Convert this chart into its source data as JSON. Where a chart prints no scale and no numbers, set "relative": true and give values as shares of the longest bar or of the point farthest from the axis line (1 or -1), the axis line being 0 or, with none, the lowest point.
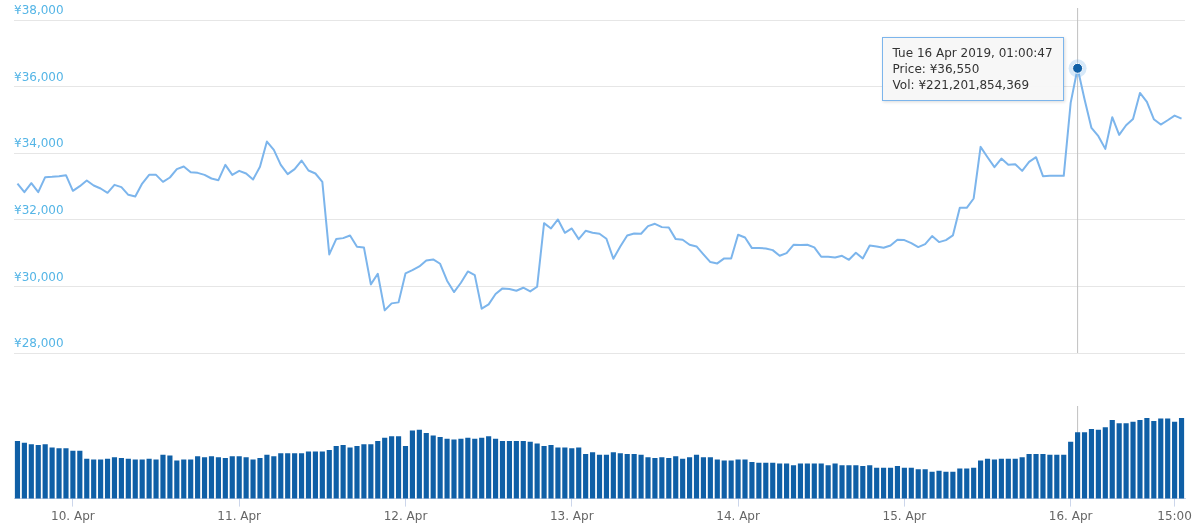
{
  "chart_data": [
    {
      "type": "line",
      "tick_labels": "y",
      "grid": "y",
      "marker": "none",
      "line_style": "solid",
      "xlim": [
        "2019-04-09T15:30",
        "2019-04-16T16:30"
      ],
      "ylim": [
        28000,
        38000
      ],
      "yticks": [
        {
          "value": 28000,
          "label": "¥28,000"
        },
        {
          "value": 30000,
          "label": "¥30,000"
        },
        {
          "value": 32000,
          "label": "¥32,000"
        },
        {
          "value": 34000,
          "label": "¥34,000"
        },
        {
          "value": 36000,
          "label": "¥36,000"
        },
        {
          "value": 38000,
          "label": "¥38,000"
        }
      ],
      "x": [
        "2019-04-09T16:00",
        "2019-04-09T17:00",
        "2019-04-09T18:00",
        "2019-04-09T19:00",
        "2019-04-09T20:00",
        "2019-04-09T21:00",
        "2019-04-09T22:00",
        "2019-04-09T23:00",
        "2019-04-10T00:00",
        "2019-04-10T01:00",
        "2019-04-10T02:00",
        "2019-04-10T03:00",
        "2019-04-10T04:00",
        "2019-04-10T05:00",
        "2019-04-10T06:00",
        "2019-04-10T07:00",
        "2019-04-10T08:00",
        "2019-04-10T09:00",
        "2019-04-10T10:00",
        "2019-04-10T11:00",
        "2019-04-10T12:00",
        "2019-04-10T13:00",
        "2019-04-10T14:00",
        "2019-04-10T15:00",
        "2019-04-10T16:00",
        "2019-04-10T17:00",
        "2019-04-10T18:00",
        "2019-04-10T19:00",
        "2019-04-10T20:00",
        "2019-04-10T21:00",
        "2019-04-10T22:00",
        "2019-04-10T23:00",
        "2019-04-11T00:00",
        "2019-04-11T01:00",
        "2019-04-11T02:00",
        "2019-04-11T03:00",
        "2019-04-11T04:00",
        "2019-04-11T05:00",
        "2019-04-11T06:00",
        "2019-04-11T07:00",
        "2019-04-11T08:00",
        "2019-04-11T09:00",
        "2019-04-11T10:00",
        "2019-04-11T11:00",
        "2019-04-11T12:00",
        "2019-04-11T13:00",
        "2019-04-11T14:00",
        "2019-04-11T15:00",
        "2019-04-11T16:00",
        "2019-04-11T17:00",
        "2019-04-11T18:00",
        "2019-04-11T19:00",
        "2019-04-11T20:00",
        "2019-04-11T21:00",
        "2019-04-11T22:00",
        "2019-04-11T23:00",
        "2019-04-12T00:00",
        "2019-04-12T01:00",
        "2019-04-12T02:00",
        "2019-04-12T03:00",
        "2019-04-12T04:00",
        "2019-04-12T05:00",
        "2019-04-12T06:00",
        "2019-04-12T07:00",
        "2019-04-12T08:00",
        "2019-04-12T09:00",
        "2019-04-12T10:00",
        "2019-04-12T11:00",
        "2019-04-12T12:00",
        "2019-04-12T13:00",
        "2019-04-12T14:00",
        "2019-04-12T15:00",
        "2019-04-12T16:00",
        "2019-04-12T17:00",
        "2019-04-12T18:00",
        "2019-04-12T19:00",
        "2019-04-12T20:00",
        "2019-04-12T21:00",
        "2019-04-12T22:00",
        "2019-04-12T23:00",
        "2019-04-13T00:00",
        "2019-04-13T01:00",
        "2019-04-13T02:00",
        "2019-04-13T03:00",
        "2019-04-13T04:00",
        "2019-04-13T05:00",
        "2019-04-13T06:00",
        "2019-04-13T07:00",
        "2019-04-13T08:00",
        "2019-04-13T09:00",
        "2019-04-13T10:00",
        "2019-04-13T11:00",
        "2019-04-13T12:00",
        "2019-04-13T13:00",
        "2019-04-13T14:00",
        "2019-04-13T15:00",
        "2019-04-13T16:00",
        "2019-04-13T17:00",
        "2019-04-13T18:00",
        "2019-04-13T19:00",
        "2019-04-13T20:00",
        "2019-04-13T21:00",
        "2019-04-13T22:00",
        "2019-04-13T23:00",
        "2019-04-14T00:00",
        "2019-04-14T01:00",
        "2019-04-14T02:00",
        "2019-04-14T03:00",
        "2019-04-14T04:00",
        "2019-04-14T05:00",
        "2019-04-14T06:00",
        "2019-04-14T07:00",
        "2019-04-14T08:00",
        "2019-04-14T09:00",
        "2019-04-14T10:00",
        "2019-04-14T11:00",
        "2019-04-14T12:00",
        "2019-04-14T13:00",
        "2019-04-14T14:00",
        "2019-04-14T15:00",
        "2019-04-14T16:00",
        "2019-04-14T17:00",
        "2019-04-14T18:00",
        "2019-04-14T19:00",
        "2019-04-14T20:00",
        "2019-04-14T21:00",
        "2019-04-14T22:00",
        "2019-04-14T23:00",
        "2019-04-15T00:00",
        "2019-04-15T01:00",
        "2019-04-15T02:00",
        "2019-04-15T03:00",
        "2019-04-15T04:00",
        "2019-04-15T05:00",
        "2019-04-15T06:00",
        "2019-04-15T07:00",
        "2019-04-15T08:00",
        "2019-04-15T09:00",
        "2019-04-15T10:00",
        "2019-04-15T11:00",
        "2019-04-15T12:00",
        "2019-04-15T13:00",
        "2019-04-15T14:00",
        "2019-04-15T15:00",
        "2019-04-15T16:00",
        "2019-04-15T17:00",
        "2019-04-15T18:00",
        "2019-04-15T19:00",
        "2019-04-15T20:00",
        "2019-04-15T21:00",
        "2019-04-15T22:00",
        "2019-04-15T23:00",
        "2019-04-16T00:00",
        "2019-04-16T01:00",
        "2019-04-16T02:00",
        "2019-04-16T03:00",
        "2019-04-16T04:00",
        "2019-04-16T05:00",
        "2019-04-16T06:00",
        "2019-04-16T07:00",
        "2019-04-16T08:00",
        "2019-04-16T09:00",
        "2019-04-16T10:00",
        "2019-04-16T11:00",
        "2019-04-16T12:00",
        "2019-04-16T13:00",
        "2019-04-16T14:00",
        "2019-04-16T15:00",
        "2019-04-16T16:00"
      ],
      "series": [
        {
          "color": "#7cb5ec",
          "values": [
            33090,
            32830,
            33100,
            32830,
            33280,
            33290,
            33310,
            33340,
            32870,
            33010,
            33180,
            33030,
            32940,
            32810,
            33050,
            32980,
            32750,
            32700,
            33090,
            33350,
            33350,
            33140,
            33270,
            33520,
            33600,
            33430,
            33410,
            33350,
            33240,
            33190,
            33650,
            33350,
            33470,
            33390,
            33210,
            33590,
            34350,
            34100,
            33650,
            33370,
            33520,
            33780,
            33480,
            33390,
            33140,
            30960,
            31420,
            31450,
            31530,
            31190,
            31170,
            30060,
            30380,
            29280,
            29490,
            29520,
            30390,
            30490,
            30600,
            30780,
            30810,
            30680,
            30170,
            29830,
            30110,
            30450,
            30340,
            29330,
            29460,
            29770,
            29940,
            29920,
            29870,
            29960,
            29850,
            29990,
            31900,
            31740,
            32010,
            31610,
            31740,
            31420,
            31670,
            31610,
            31580,
            31430,
            30830,
            31200,
            31530,
            31590,
            31580,
            31810,
            31880,
            31780,
            31770,
            31420,
            31400,
            31250,
            31200,
            30960,
            30730,
            30690,
            30840,
            30840,
            31550,
            31470,
            31150,
            31150,
            31140,
            31090,
            30920,
            31000,
            31250,
            31240,
            31250,
            31170,
            30890,
            30890,
            30870,
            30920,
            30800,
            31010,
            30840,
            31230,
            31200,
            31160,
            31230,
            31400,
            31390,
            31300,
            31180,
            31270,
            31510,
            31330,
            31390,
            31530,
            32360,
            32360,
            32640,
            34190,
            33880,
            33580,
            33840,
            33650,
            33670,
            33470,
            33740,
            33880,
            33310,
            33320,
            33320,
            33320,
            35510,
            36550,
            35620,
            34760,
            34510,
            34130,
            35080,
            34550,
            34840,
            35030,
            35810,
            35540,
            35020,
            34860,
            34990,
            35130,
            35040
          ]
        }
      ],
      "ref_lines": [
        {
          "axis": "x",
          "value": "2019-04-16T01:00",
          "color": "#c0c0c0"
        }
      ],
      "annotations": [
        {
          "text": "Tue 16 Apr 2019, 01:00:47\nPrice: ¥36,550\nVol: ¥221,201,854,369",
          "x": "2019-04-16T01:00",
          "y": 36550
        }
      ]
    },
    {
      "type": "bar",
      "relative": true,
      "tick_labels": "x",
      "grid": false,
      "xlim": [
        "2019-04-09T15:30",
        "2019-04-16T16:30"
      ],
      "xticks": [
        {
          "value": "2019-04-10",
          "label": "10. Apr"
        },
        {
          "value": "2019-04-11",
          "label": "11. Apr"
        },
        {
          "value": "2019-04-12",
          "label": "12. Apr"
        },
        {
          "value": "2019-04-13",
          "label": "13. Apr"
        },
        {
          "value": "2019-04-14",
          "label": "14. Apr"
        },
        {
          "value": "2019-04-15",
          "label": "15. Apr"
        },
        {
          "value": "2019-04-16",
          "label": "16. Apr"
        },
        {
          "value": "2019-04-16T15:00",
          "label": "15:00"
        }
      ],
      "x": [
        "2019-04-09T16:00",
        "2019-04-09T17:00",
        "2019-04-09T18:00",
        "2019-04-09T19:00",
        "2019-04-09T20:00",
        "2019-04-09T21:00",
        "2019-04-09T22:00",
        "2019-04-09T23:00",
        "2019-04-10T00:00",
        "2019-04-10T01:00",
        "2019-04-10T02:00",
        "2019-04-10T03:00",
        "2019-04-10T04:00",
        "2019-04-10T05:00",
        "2019-04-10T06:00",
        "2019-04-10T07:00",
        "2019-04-10T08:00",
        "2019-04-10T09:00",
        "2019-04-10T10:00",
        "2019-04-10T11:00",
        "2019-04-10T12:00",
        "2019-04-10T13:00",
        "2019-04-10T14:00",
        "2019-04-10T15:00",
        "2019-04-10T16:00",
        "2019-04-10T17:00",
        "2019-04-10T18:00",
        "2019-04-10T19:00",
        "2019-04-10T20:00",
        "2019-04-10T21:00",
        "2019-04-10T22:00",
        "2019-04-10T23:00",
        "2019-04-11T00:00",
        "2019-04-11T01:00",
        "2019-04-11T02:00",
        "2019-04-11T03:00",
        "2019-04-11T04:00",
        "2019-04-11T05:00",
        "2019-04-11T06:00",
        "2019-04-11T07:00",
        "2019-04-11T08:00",
        "2019-04-11T09:00",
        "2019-04-11T10:00",
        "2019-04-11T11:00",
        "2019-04-11T12:00",
        "2019-04-11T13:00",
        "2019-04-11T14:00",
        "2019-04-11T15:00",
        "2019-04-11T16:00",
        "2019-04-11T17:00",
        "2019-04-11T18:00",
        "2019-04-11T19:00",
        "2019-04-11T20:00",
        "2019-04-11T21:00",
        "2019-04-11T22:00",
        "2019-04-11T23:00",
        "2019-04-12T00:00",
        "2019-04-12T01:00",
        "2019-04-12T02:00",
        "2019-04-12T03:00",
        "2019-04-12T04:00",
        "2019-04-12T05:00",
        "2019-04-12T06:00",
        "2019-04-12T07:00",
        "2019-04-12T08:00",
        "2019-04-12T09:00",
        "2019-04-12T10:00",
        "2019-04-12T11:00",
        "2019-04-12T12:00",
        "2019-04-12T13:00",
        "2019-04-12T14:00",
        "2019-04-12T15:00",
        "2019-04-12T16:00",
        "2019-04-12T17:00",
        "2019-04-12T18:00",
        "2019-04-12T19:00",
        "2019-04-12T20:00",
        "2019-04-12T21:00",
        "2019-04-12T22:00",
        "2019-04-12T23:00",
        "2019-04-13T00:00",
        "2019-04-13T01:00",
        "2019-04-13T02:00",
        "2019-04-13T03:00",
        "2019-04-13T04:00",
        "2019-04-13T05:00",
        "2019-04-13T06:00",
        "2019-04-13T07:00",
        "2019-04-13T08:00",
        "2019-04-13T09:00",
        "2019-04-13T10:00",
        "2019-04-13T11:00",
        "2019-04-13T12:00",
        "2019-04-13T13:00",
        "2019-04-13T14:00",
        "2019-04-13T15:00",
        "2019-04-13T16:00",
        "2019-04-13T17:00",
        "2019-04-13T18:00",
        "2019-04-13T19:00",
        "2019-04-13T20:00",
        "2019-04-13T21:00",
        "2019-04-13T22:00",
        "2019-04-13T23:00",
        "2019-04-14T00:00",
        "2019-04-14T01:00",
        "2019-04-14T02:00",
        "2019-04-14T03:00",
        "2019-04-14T04:00",
        "2019-04-14T05:00",
        "2019-04-14T06:00",
        "2019-04-14T07:00",
        "2019-04-14T08:00",
        "2019-04-14T09:00",
        "2019-04-14T10:00",
        "2019-04-14T11:00",
        "2019-04-14T12:00",
        "2019-04-14T13:00",
        "2019-04-14T14:00",
        "2019-04-14T15:00",
        "2019-04-14T16:00",
        "2019-04-14T17:00",
        "2019-04-14T18:00",
        "2019-04-14T19:00",
        "2019-04-14T20:00",
        "2019-04-14T21:00",
        "2019-04-14T22:00",
        "2019-04-14T23:00",
        "2019-04-15T00:00",
        "2019-04-15T01:00",
        "2019-04-15T02:00",
        "2019-04-15T03:00",
        "2019-04-15T04:00",
        "2019-04-15T05:00",
        "2019-04-15T06:00",
        "2019-04-15T07:00",
        "2019-04-15T08:00",
        "2019-04-15T09:00",
        "2019-04-15T10:00",
        "2019-04-15T11:00",
        "2019-04-15T12:00",
        "2019-04-15T13:00",
        "2019-04-15T14:00",
        "2019-04-15T15:00",
        "2019-04-15T16:00",
        "2019-04-15T17:00",
        "2019-04-15T18:00",
        "2019-04-15T19:00",
        "2019-04-15T20:00",
        "2019-04-15T21:00",
        "2019-04-15T22:00",
        "2019-04-15T23:00",
        "2019-04-16T00:00",
        "2019-04-16T01:00",
        "2019-04-16T02:00",
        "2019-04-16T03:00",
        "2019-04-16T04:00",
        "2019-04-16T05:00",
        "2019-04-16T06:00",
        "2019-04-16T07:00",
        "2019-04-16T08:00",
        "2019-04-16T09:00",
        "2019-04-16T10:00",
        "2019-04-16T11:00",
        "2019-04-16T12:00",
        "2019-04-16T13:00",
        "2019-04-16T14:00",
        "2019-04-16T15:00",
        "2019-04-16T16:00"
      ],
      "series": [
        {
          "color": "#0f5fa6",
          "values": [
            0.71,
            0.69,
            0.67,
            0.66,
            0.67,
            0.63,
            0.62,
            0.62,
            0.59,
            0.59,
            0.49,
            0.48,
            0.48,
            0.49,
            0.51,
            0.5,
            0.49,
            0.48,
            0.48,
            0.49,
            0.48,
            0.54,
            0.53,
            0.47,
            0.48,
            0.48,
            0.52,
            0.51,
            0.52,
            0.51,
            0.5,
            0.52,
            0.52,
            0.51,
            0.48,
            0.5,
            0.54,
            0.52,
            0.56,
            0.56,
            0.56,
            0.56,
            0.58,
            0.58,
            0.58,
            0.6,
            0.65,
            0.66,
            0.63,
            0.65,
            0.67,
            0.67,
            0.71,
            0.75,
            0.77,
            0.77,
            0.65,
            0.84,
            0.85,
            0.81,
            0.78,
            0.76,
            0.74,
            0.73,
            0.74,
            0.75,
            0.74,
            0.75,
            0.77,
            0.74,
            0.71,
            0.71,
            0.71,
            0.71,
            0.7,
            0.68,
            0.65,
            0.66,
            0.63,
            0.63,
            0.62,
            0.63,
            0.55,
            0.57,
            0.54,
            0.54,
            0.57,
            0.56,
            0.55,
            0.55,
            0.54,
            0.51,
            0.5,
            0.51,
            0.5,
            0.52,
            0.49,
            0.51,
            0.54,
            0.51,
            0.51,
            0.48,
            0.47,
            0.47,
            0.48,
            0.48,
            0.45,
            0.44,
            0.44,
            0.44,
            0.43,
            0.43,
            0.41,
            0.43,
            0.43,
            0.43,
            0.43,
            0.41,
            0.43,
            0.41,
            0.41,
            0.41,
            0.4,
            0.41,
            0.38,
            0.38,
            0.38,
            0.4,
            0.38,
            0.38,
            0.36,
            0.36,
            0.33,
            0.34,
            0.33,
            0.33,
            0.37,
            0.37,
            0.38,
            0.47,
            0.49,
            0.48,
            0.49,
            0.49,
            0.49,
            0.51,
            0.55,
            0.55,
            0.55,
            0.54,
            0.54,
            0.54,
            0.7,
            0.82,
            0.82,
            0.86,
            0.85,
            0.88,
            0.97,
            0.93,
            0.93,
            0.95,
            0.97,
            1,
            0.96,
            0.99,
            0.99,
            0.95,
            1
          ]
        }
      ],
      "ref_lines": [
        {
          "axis": "x",
          "value": "2019-04-16T01:00",
          "color": "#c0c0c0"
        }
      ]
    }
  ]
}
